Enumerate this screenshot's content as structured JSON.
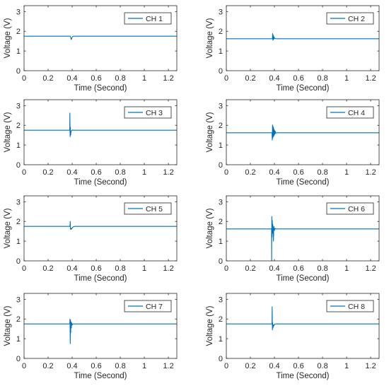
{
  "chart_data": [
    {
      "type": "line",
      "legend": "CH 1",
      "xlabel": "Time (Second)",
      "ylabel": "Voltage (V)",
      "xlim": [
        0,
        1.27
      ],
      "ylim": [
        0,
        3.3
      ],
      "xticks": [
        "0",
        "0.2",
        "0.4",
        "0.6",
        "0.8",
        "1",
        "1.2"
      ],
      "yticks": [
        "0",
        "1",
        "2",
        "3"
      ],
      "legend_position": "top-right",
      "color": "#0072BD",
      "series": [
        {
          "name": "CH 1",
          "x": [
            0,
            0.385,
            0.388,
            0.39,
            0.392,
            0.394,
            0.396,
            0.4,
            0.405,
            0.41,
            1.27
          ],
          "y": [
            1.75,
            1.75,
            1.68,
            1.62,
            1.58,
            1.6,
            1.63,
            1.7,
            1.73,
            1.75,
            1.75
          ]
        }
      ]
    },
    {
      "type": "line",
      "legend": "CH 2",
      "xlabel": "Time (Second)",
      "ylabel": "Voltage (V)",
      "xlim": [
        0,
        1.27
      ],
      "ylim": [
        0,
        3.3
      ],
      "xticks": [
        "0",
        "0.2",
        "0.4",
        "0.6",
        "0.8",
        "1",
        "1.2"
      ],
      "yticks": [
        "0",
        "1",
        "2",
        "3"
      ],
      "legend_position": "top-right",
      "color": "#0072BD",
      "series": [
        {
          "name": "CH 2",
          "x": [
            0,
            0.383,
            0.385,
            0.387,
            0.389,
            0.391,
            0.393,
            0.395,
            0.398,
            0.402,
            0.41,
            1.27
          ],
          "y": [
            1.62,
            1.62,
            1.88,
            1.55,
            1.82,
            1.58,
            1.75,
            1.6,
            1.7,
            1.64,
            1.62,
            1.62
          ]
        }
      ]
    },
    {
      "type": "line",
      "legend": "CH 3",
      "xlabel": "Time (Second)",
      "ylabel": "Voltage (V)",
      "xlim": [
        0,
        1.27
      ],
      "ylim": [
        0,
        3.3
      ],
      "xticks": [
        "0",
        "0.2",
        "0.4",
        "0.6",
        "0.8",
        "1",
        "1.2"
      ],
      "yticks": [
        "0",
        "1",
        "2",
        "3"
      ],
      "legend_position": "top-right",
      "color": "#0072BD",
      "series": [
        {
          "name": "CH 3",
          "x": [
            0,
            0.38,
            0.381,
            0.383,
            0.385,
            0.387,
            0.39,
            0.394,
            0.4,
            0.41,
            1.27
          ],
          "y": [
            1.75,
            1.75,
            2.62,
            1.42,
            1.9,
            1.5,
            1.65,
            1.72,
            1.76,
            1.75,
            1.75
          ]
        }
      ]
    },
    {
      "type": "line",
      "legend": "CH 4",
      "xlabel": "Time (Second)",
      "ylabel": "Voltage (V)",
      "xlim": [
        0,
        1.27
      ],
      "ylim": [
        0,
        3.3
      ],
      "xticks": [
        "0",
        "0.2",
        "0.4",
        "0.6",
        "0.8",
        "1",
        "1.2"
      ],
      "yticks": [
        "0",
        "1",
        "2",
        "3"
      ],
      "legend_position": "top-right",
      "color": "#0072BD",
      "series": [
        {
          "name": "CH 4",
          "x": [
            0,
            0.38,
            0.382,
            0.384,
            0.386,
            0.388,
            0.39,
            0.392,
            0.394,
            0.396,
            0.398,
            0.4,
            0.403,
            0.406,
            0.41,
            0.415,
            1.27
          ],
          "y": [
            1.62,
            1.62,
            1.25,
            2.02,
            1.35,
            1.95,
            1.42,
            1.88,
            1.45,
            1.8,
            1.5,
            1.75,
            1.55,
            1.7,
            1.6,
            1.62,
            1.62
          ]
        }
      ]
    },
    {
      "type": "line",
      "legend": "CH 5",
      "xlabel": "Time (Second)",
      "ylabel": "Voltage (V)",
      "xlim": [
        0,
        1.27
      ],
      "ylim": [
        0,
        3.3
      ],
      "xticks": [
        "0",
        "0.2",
        "0.4",
        "0.6",
        "0.8",
        "1",
        "1.2"
      ],
      "yticks": [
        "0",
        "1",
        "2",
        "3"
      ],
      "legend_position": "top-right",
      "color": "#0072BD",
      "series": [
        {
          "name": "CH 5",
          "x": [
            0,
            0.382,
            0.384,
            0.386,
            0.389,
            0.393,
            0.398,
            0.404,
            0.41,
            0.42,
            1.27
          ],
          "y": [
            1.75,
            1.75,
            2.0,
            1.6,
            1.66,
            1.6,
            1.65,
            1.7,
            1.73,
            1.75,
            1.75
          ]
        }
      ]
    },
    {
      "type": "line",
      "legend": "CH 6",
      "xlabel": "Time (Second)",
      "ylabel": "Voltage (V)",
      "xlim": [
        0,
        1.27
      ],
      "ylim": [
        0,
        3.3
      ],
      "xticks": [
        "0",
        "0.2",
        "0.4",
        "0.6",
        "0.8",
        "1",
        "1.2"
      ],
      "yticks": [
        "0",
        "1",
        "2",
        "3"
      ],
      "legend_position": "top-right",
      "color": "#0072BD",
      "series": [
        {
          "name": "CH 6",
          "x": [
            0,
            0.376,
            0.377,
            0.378,
            0.38,
            0.382,
            0.384,
            0.386,
            0.389,
            0.392,
            0.395,
            0.4,
            0.405,
            0.41,
            1.27
          ],
          "y": [
            1.62,
            1.62,
            0.0,
            2.25,
            1.2,
            2.05,
            1.4,
            1.85,
            1.5,
            1.0,
            1.75,
            1.55,
            1.65,
            1.62,
            1.62
          ]
        }
      ]
    },
    {
      "type": "line",
      "legend": "CH 7",
      "xlabel": "Time (Second)",
      "ylabel": "Voltage (V)",
      "xlim": [
        0,
        1.27
      ],
      "ylim": [
        0,
        3.3
      ],
      "xticks": [
        "0",
        "0.2",
        "0.4",
        "0.6",
        "0.8",
        "1",
        "1.2"
      ],
      "yticks": [
        "0",
        "1",
        "2",
        "3"
      ],
      "legend_position": "top-right",
      "color": "#0072BD",
      "series": [
        {
          "name": "CH 7",
          "x": [
            0,
            0.38,
            0.382,
            0.384,
            0.386,
            0.388,
            0.39,
            0.393,
            0.396,
            0.4,
            0.405,
            1.27
          ],
          "y": [
            1.75,
            1.75,
            2.0,
            0.75,
            1.95,
            1.3,
            1.85,
            1.55,
            1.8,
            1.7,
            1.75,
            1.75
          ]
        }
      ]
    },
    {
      "type": "line",
      "legend": "CH 8",
      "xlabel": "Time (Second)",
      "ylabel": "Voltage (V)",
      "xlim": [
        0,
        1.27
      ],
      "ylim": [
        0,
        3.3
      ],
      "xticks": [
        "0",
        "0.2",
        "0.4",
        "0.6",
        "0.8",
        "1",
        "1.2"
      ],
      "yticks": [
        "0",
        "1",
        "2",
        "3"
      ],
      "legend_position": "top-right",
      "color": "#0072BD",
      "series": [
        {
          "name": "CH 8",
          "x": [
            0,
            0.38,
            0.381,
            0.383,
            0.385,
            0.388,
            0.391,
            0.395,
            0.4,
            0.41,
            1.27
          ],
          "y": [
            1.75,
            1.75,
            2.62,
            1.45,
            1.8,
            1.55,
            1.7,
            1.65,
            1.73,
            1.75,
            1.75
          ]
        }
      ]
    }
  ]
}
